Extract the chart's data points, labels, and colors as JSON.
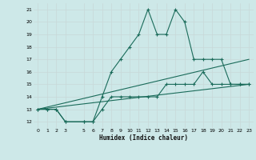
{
  "xlabel": "Humidex (Indice chaleur)",
  "bg_color": "#cde8e8",
  "grid_color": "#b0d0d0",
  "line_color": "#1a6b5a",
  "xlim": [
    -0.5,
    23.5
  ],
  "ylim": [
    11.5,
    21.5
  ],
  "xticks": [
    0,
    1,
    2,
    3,
    5,
    6,
    7,
    8,
    9,
    10,
    11,
    12,
    13,
    14,
    15,
    16,
    17,
    18,
    19,
    20,
    21,
    22,
    23
  ],
  "yticks": [
    12,
    13,
    14,
    15,
    16,
    17,
    18,
    19,
    20,
    21
  ],
  "series": [
    {
      "x": [
        0,
        1,
        2,
        3,
        5,
        6,
        7,
        8,
        9,
        10,
        11,
        12,
        13,
        14,
        15,
        16,
        17,
        18,
        19,
        20,
        21,
        22,
        23
      ],
      "y": [
        13,
        13,
        13,
        12,
        12,
        12,
        14,
        16,
        17,
        18,
        19,
        21,
        19,
        19,
        21,
        20,
        17,
        17,
        17,
        17,
        15,
        15,
        15
      ],
      "marker": true
    },
    {
      "x": [
        0,
        1,
        2,
        3,
        5,
        6,
        7,
        8,
        9,
        10,
        11,
        12,
        13,
        14,
        15,
        16,
        17,
        18,
        19,
        20,
        21,
        22,
        23
      ],
      "y": [
        13,
        13,
        13,
        12,
        12,
        12,
        13,
        14,
        14,
        14,
        14,
        14,
        14,
        15,
        15,
        15,
        15,
        16,
        15,
        15,
        15,
        15,
        15
      ],
      "marker": true
    },
    {
      "x": [
        0,
        23
      ],
      "y": [
        13,
        15
      ],
      "marker": false
    },
    {
      "x": [
        0,
        23
      ],
      "y": [
        13,
        17
      ],
      "marker": false
    }
  ]
}
